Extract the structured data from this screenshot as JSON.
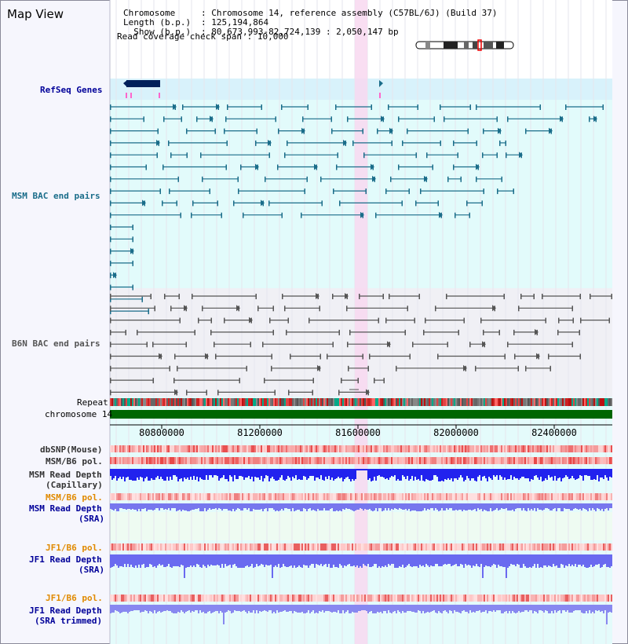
{
  "page": {
    "title": "Map View"
  },
  "info": {
    "chromosome_label": "Chromosome",
    "chromosome_value": ": Chromosome 14, reference assembly (C57BL/6J) (Build 37)",
    "length_label": "Length (b.p.)",
    "length_value": ": 125,194,864",
    "show_label": "Show (b.p.)",
    "show_value": ": 80,673,993-82,724,139 : 2,050,147 bp",
    "coverage_label": "Read coverage check span",
    "coverage_value": ": 10,000"
  },
  "tracks": {
    "refseq": "RefSeq Genes",
    "msm_bac": "MSM BAC end pairs",
    "b6n_bac": "B6N BAC end pairs",
    "repeat": "Repeat",
    "chromosome": "chromosome 14",
    "dbsnp": "dbSNP(Mouse)",
    "msm_b6_pol_1": "MSM/B6 pol.",
    "msm_depth_cap_1": "MSM Read Depth",
    "msm_depth_cap_2": "(Capillary)",
    "msm_b6_pol_2": "MSM/B6 pol.",
    "msm_depth_sra_1": "MSM Read Depth",
    "msm_depth_sra_2": "(SRA)",
    "jf1_b6_pol_1": "JF1/B6 pol.",
    "jf1_depth_sra_1": "JF1 Read Depth",
    "jf1_depth_sra_2": "(SRA)",
    "jf1_b6_pol_2": "JF1/B6 pol.",
    "jf1_depth_trim_1": "JF1 Read Depth",
    "jf1_depth_trim_2": "(SRA trimmed)"
  },
  "axis": {
    "ticks": [
      "80800000",
      "81200000",
      "81600000",
      "82000000",
      "82400000"
    ]
  },
  "colors": {
    "msm_teal": "#1a6d8a",
    "b6n_gray": "#555555",
    "navy": "#000099",
    "orange": "#e08a00",
    "depth_blue": "#2222ee",
    "depth_light": "#7777ee",
    "chrom_green": "#006600",
    "highlight_pink": "#f8d8f0"
  }
}
